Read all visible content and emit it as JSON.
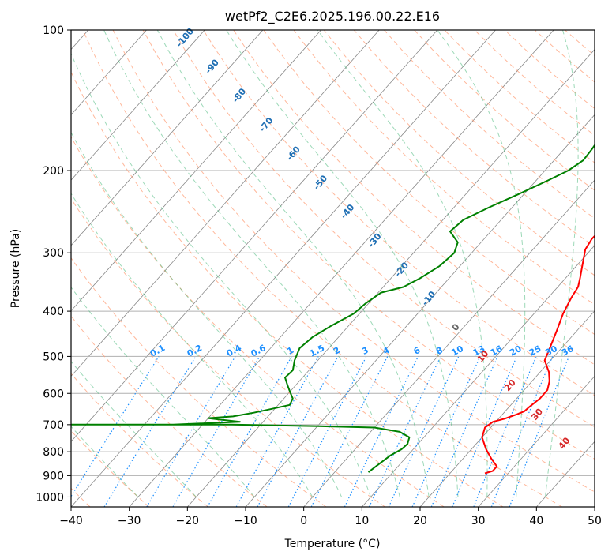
{
  "chart_data": {
    "type": "line",
    "diagram": "skew-T log-P",
    "title": "wetPf2_C2E6.2025.196.00.22.E16",
    "xlabel": "Temperature (°C)",
    "ylabel": "Pressure (hPa)",
    "xlim": [
      -40,
      50
    ],
    "ylim_hPa": [
      1050,
      100
    ],
    "y_scale": "log",
    "grid": true,
    "x_ticks": [
      "−40",
      "−30",
      "−20",
      "−10",
      "0",
      "10",
      "20",
      "30",
      "40",
      "50"
    ],
    "y_ticks": [
      "100",
      "200",
      "300",
      "400",
      "500",
      "600",
      "700",
      "800",
      "900",
      "1000"
    ],
    "series": [
      {
        "color": "#ff0000",
        "role": "temperature",
        "points": [
          [
            26.0,
            890
          ],
          [
            27.0,
            880
          ],
          [
            27.0,
            860
          ],
          [
            25.0,
            830
          ],
          [
            22.5,
            790
          ],
          [
            20.0,
            745
          ],
          [
            19.0,
            710
          ],
          [
            19.5,
            690
          ],
          [
            21.0,
            680
          ],
          [
            22.5,
            665
          ],
          [
            23.3,
            655
          ],
          [
            23.5,
            640
          ],
          [
            24.0,
            615
          ],
          [
            24.0,
            590
          ],
          [
            23.0,
            565
          ],
          [
            21.5,
            540
          ],
          [
            19.0,
            510
          ],
          [
            18.0,
            480
          ],
          [
            16.5,
            440
          ],
          [
            15.0,
            405
          ],
          [
            14.0,
            375
          ],
          [
            13.5,
            355
          ],
          [
            12.5,
            340
          ],
          [
            11.0,
            320
          ],
          [
            9.0,
            295
          ],
          [
            8.5,
            280
          ],
          [
            8.8,
            255
          ],
          [
            8.0,
            240
          ],
          [
            6.5,
            225
          ],
          [
            4.5,
            205
          ],
          [
            3.0,
            190
          ],
          [
            1.5,
            175
          ],
          [
            0.8,
            160
          ],
          [
            0.7,
            150
          ],
          [
            1.5,
            140
          ],
          [
            2.0,
            130
          ],
          [
            1.8,
            120
          ],
          [
            2.5,
            110
          ],
          [
            4.5,
            104
          ],
          [
            7.0,
            100
          ]
        ]
      },
      {
        "color": "#008000",
        "role": "dewpoint",
        "points": [
          [
            5.8,
            885
          ],
          [
            6.2,
            860
          ],
          [
            7.0,
            815
          ],
          [
            8.0,
            790
          ],
          [
            8.2,
            770
          ],
          [
            7.5,
            745
          ],
          [
            5.0,
            725
          ],
          [
            0.0,
            710
          ],
          [
            -10.0,
            705
          ],
          [
            -25.0,
            700
          ],
          [
            -40.0,
            700
          ],
          [
            -55.0,
            700
          ],
          [
            -35.0,
            700
          ],
          [
            -24.0,
            690
          ],
          [
            -28.0,
            682
          ],
          [
            -30.0,
            678
          ],
          [
            -26.0,
            672
          ],
          [
            -23.0,
            660
          ],
          [
            -21.0,
            650
          ],
          [
            -18.0,
            635
          ],
          [
            -18.5,
            615
          ],
          [
            -20.0,
            595
          ],
          [
            -21.5,
            575
          ],
          [
            -23.0,
            555
          ],
          [
            -22.8,
            535
          ],
          [
            -24.0,
            510
          ],
          [
            -25.0,
            480
          ],
          [
            -24.5,
            455
          ],
          [
            -23.0,
            430
          ],
          [
            -21.0,
            405
          ],
          [
            -20.5,
            385
          ],
          [
            -19.5,
            365
          ],
          [
            -16.5,
            355
          ],
          [
            -15.0,
            340
          ],
          [
            -13.5,
            320
          ],
          [
            -13.0,
            300
          ],
          [
            -14.0,
            285
          ],
          [
            -17.0,
            270
          ],
          [
            -16.5,
            255
          ],
          [
            -14.0,
            240
          ],
          [
            -11.0,
            225
          ],
          [
            -8.0,
            210
          ],
          [
            -6.0,
            200
          ],
          [
            -5.0,
            190
          ],
          [
            -5.2,
            180
          ],
          [
            -5.6,
            170
          ],
          [
            -5.8,
            160
          ],
          [
            -4.5,
            150
          ],
          [
            -4.0,
            140
          ],
          [
            -4.0,
            130
          ],
          [
            -3.6,
            120
          ],
          [
            -2.5,
            110
          ],
          [
            -1.0,
            100
          ]
        ]
      }
    ],
    "dry_adiabats_C": [
      -40,
      -30,
      -20,
      -10,
      0,
      10,
      20,
      30,
      40,
      50,
      60,
      70,
      80,
      90,
      100,
      110,
      120,
      130,
      140,
      150,
      160,
      170,
      180,
      190,
      200
    ],
    "moist_adiabats_C": [
      -30,
      -20,
      -10,
      0,
      5,
      10,
      15,
      20,
      25,
      30,
      35,
      40
    ],
    "mixing_ratio_labels": [
      "0.1",
      "0.2",
      "0.4",
      "0.6",
      "1",
      "1.5",
      "2",
      "3",
      "4",
      "6",
      "8",
      "10",
      "13",
      "16",
      "20",
      "25",
      "30",
      "36"
    ],
    "height_contours_blue": [
      "-100",
      "-90",
      "-80",
      "-70",
      "-60",
      "-50",
      "-40",
      "-30",
      "-20",
      "-10"
    ],
    "height_contours_gray": [
      "0"
    ],
    "height_contours_red": [
      "10",
      "20",
      "30",
      "40"
    ],
    "colors": {
      "temperature": "#ff0000",
      "dewpoint": "#008000",
      "dry_adiabat": "#ffa07a",
      "moist_adiabat": "#3cb371",
      "mixing_ratio": "#1e90ff",
      "isotherm": "#888888",
      "blue_label": "#1f6fb4",
      "red_label": "#d62728",
      "gray_label": "#666666"
    }
  }
}
